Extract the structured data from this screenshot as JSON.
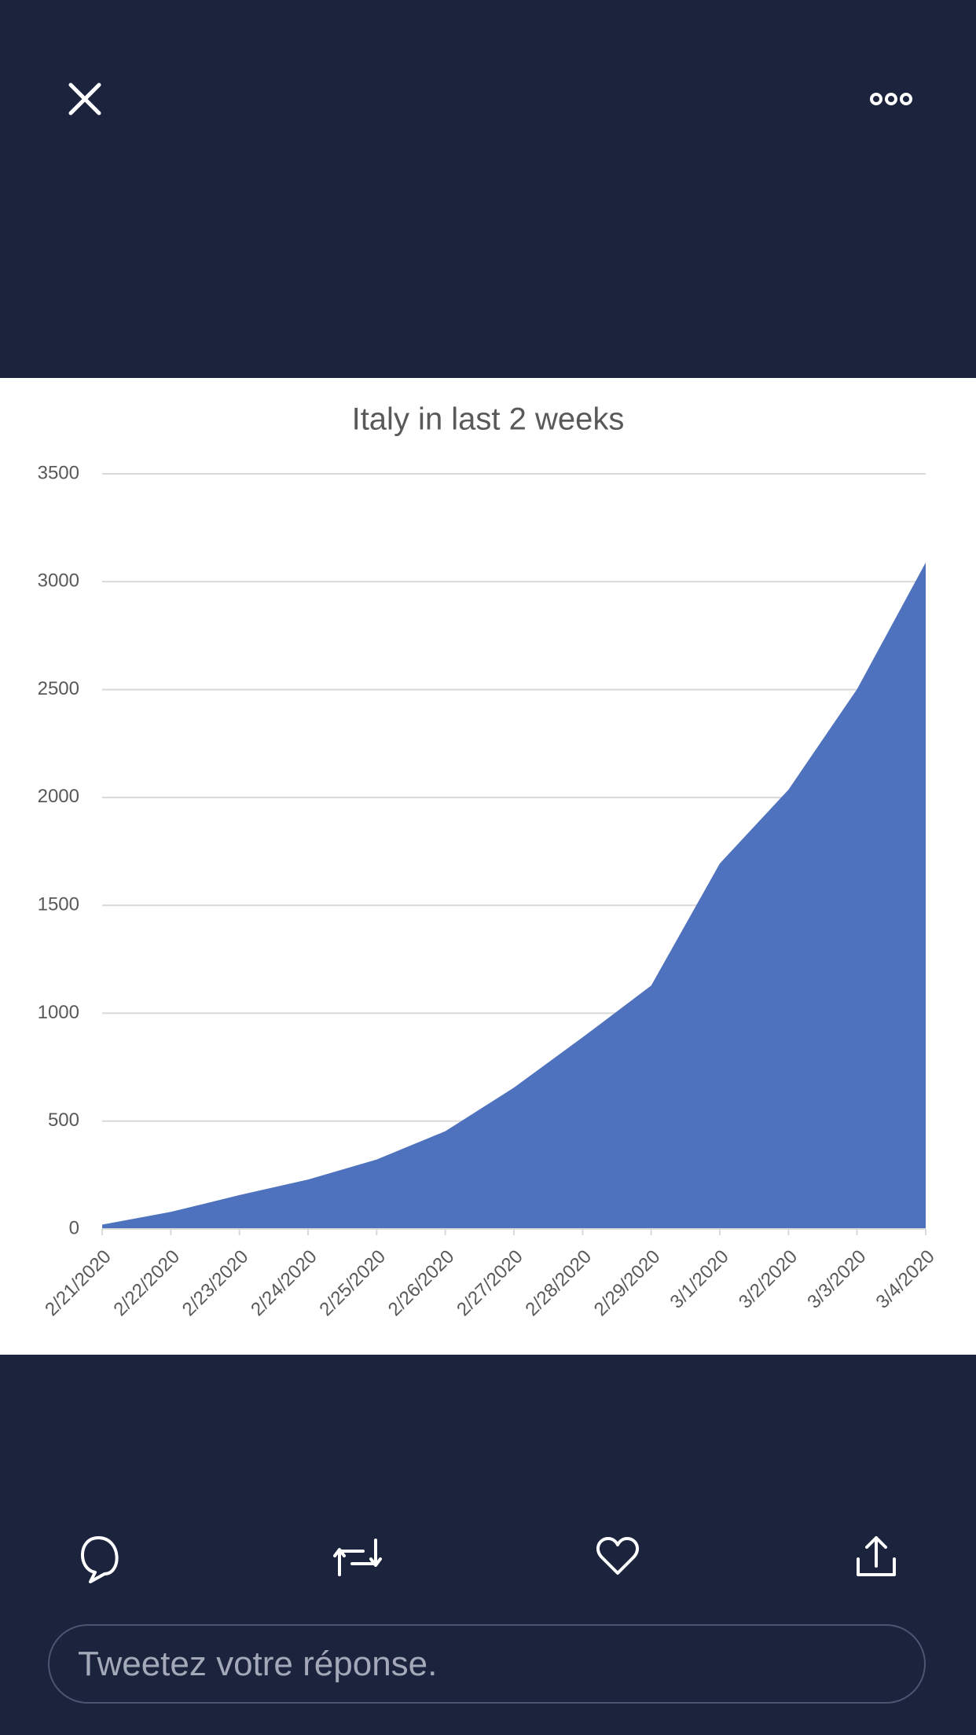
{
  "chart_data": {
    "type": "area",
    "title": "Italy in last 2 weeks",
    "categories": [
      "2/21/2020",
      "2/22/2020",
      "2/23/2020",
      "2/24/2020",
      "2/25/2020",
      "2/26/2020",
      "2/27/2020",
      "2/28/2020",
      "2/29/2020",
      "3/1/2020",
      "3/2/2020",
      "3/3/2020",
      "3/4/2020"
    ],
    "values": [
      20,
      79,
      157,
      229,
      322,
      453,
      655,
      888,
      1128,
      1694,
      2036,
      2502,
      3089
    ],
    "color": "#4f72be",
    "ylim": [
      0,
      3500
    ],
    "yticks": [
      0,
      500,
      1000,
      1500,
      2000,
      2500,
      3000,
      3500
    ],
    "grid": true
  },
  "reply_box": {
    "placeholder": "Tweetez votre réponse."
  }
}
